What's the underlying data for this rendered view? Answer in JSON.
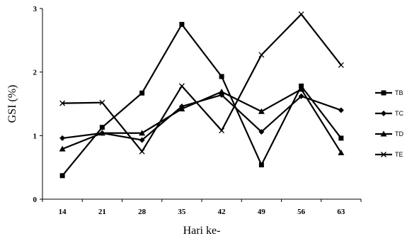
{
  "chart_data": {
    "type": "line",
    "xlabel": "Hari ke-",
    "ylabel": "GSI (%)",
    "categories": [
      "14",
      "21",
      "28",
      "35",
      "42",
      "49",
      "56",
      "63"
    ],
    "ylim": [
      0,
      3
    ],
    "yticks": [
      "0",
      "1",
      "2",
      "3"
    ],
    "grid": false,
    "legend_position": "right",
    "series": [
      {
        "name": "TB",
        "marker": "square",
        "color": "#000000",
        "values": [
          0.37,
          1.13,
          1.67,
          2.75,
          1.93,
          0.54,
          1.78,
          0.96
        ]
      },
      {
        "name": "TC",
        "marker": "diamond",
        "color": "#000000",
        "values": [
          0.96,
          1.04,
          0.93,
          1.46,
          1.64,
          1.06,
          1.62,
          1.4
        ]
      },
      {
        "name": "TD",
        "marker": "triangle",
        "color": "#000000",
        "values": [
          0.79,
          1.04,
          1.04,
          1.42,
          1.69,
          1.38,
          1.73,
          0.73
        ]
      },
      {
        "name": "TE",
        "marker": "x",
        "color": "#000000",
        "values": [
          1.51,
          1.52,
          0.75,
          1.78,
          1.08,
          2.27,
          2.91,
          2.11
        ]
      }
    ]
  }
}
